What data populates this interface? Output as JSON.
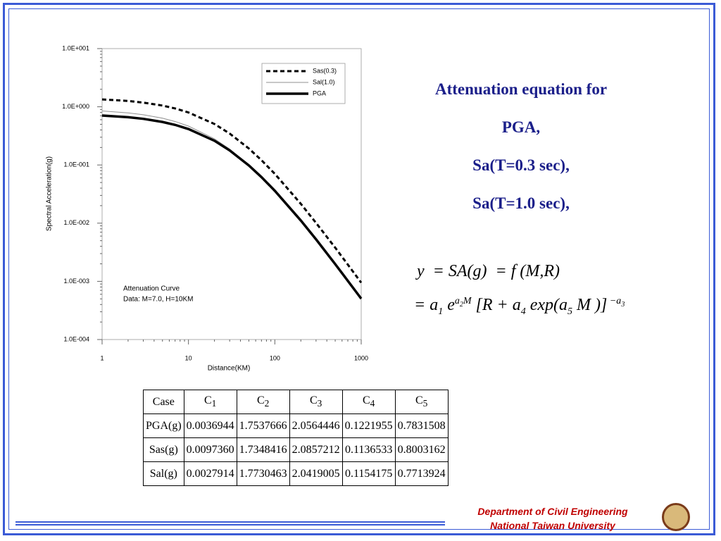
{
  "chart_data": {
    "type": "line",
    "log_x": true,
    "log_y": true,
    "ylabel": "Spectral Acceleration(g)",
    "xlabel": "Distance(KM)",
    "annotations": [
      "Attenuation Curve",
      "Data: M=7.0, H=10KM"
    ],
    "legend": "upper right",
    "xlim": [
      1,
      1000
    ],
    "xticks": [
      1,
      10,
      100,
      1000
    ],
    "ylim": [
      0.0001,
      10
    ],
    "yticks": [
      {
        "value": 10,
        "label": "1.0E+001"
      },
      {
        "value": 1,
        "label": "1.0E+000"
      },
      {
        "value": 0.1,
        "label": "1.0E-001"
      },
      {
        "value": 0.01,
        "label": "1.0E-002"
      },
      {
        "value": 0.001,
        "label": "1.0E-003"
      },
      {
        "value": 0.0001,
        "label": "1.0E-004"
      }
    ],
    "x": [
      1,
      2,
      3,
      5,
      7,
      10,
      20,
      30,
      50,
      70,
      100,
      200,
      300,
      500,
      700,
      1000
    ],
    "series": [
      {
        "name": "Sas(0.3)",
        "color": "#000000",
        "style": "dashed",
        "linewidth": 3,
        "values": [
          1.34,
          1.26,
          1.18,
          1.05,
          0.937,
          0.799,
          0.506,
          0.347,
          0.192,
          0.121,
          0.0704,
          0.0215,
          0.0101,
          0.00379,
          0.00194,
          0.000949
        ]
      },
      {
        "name": "Sal(1.0)",
        "color": "#909090",
        "style": "solid",
        "linewidth": 1,
        "values": [
          0.848,
          0.786,
          0.731,
          0.637,
          0.559,
          0.466,
          0.282,
          0.188,
          0.1,
          0.0619,
          0.0355,
          0.0108,
          0.00506,
          0.00191,
          0.000986,
          0.000486
        ]
      },
      {
        "name": "PGA",
        "color": "#000000",
        "style": "solid",
        "linewidth": 3.5,
        "values": [
          0.707,
          0.663,
          0.621,
          0.549,
          0.489,
          0.415,
          0.261,
          0.178,
          0.0981,
          0.0619,
          0.036,
          0.0111,
          0.00527,
          0.00198,
          0.00102,
          0.000505
        ]
      }
    ]
  },
  "heading": [
    "Attenuation equation for",
    "PGA,",
    "Sa(T=0.3 sec),",
    "Sa(T=1.0 sec),"
  ],
  "equation": {
    "line1": "y  = SA(g)  = f (M,R)",
    "line2": [
      "= a",
      "1",
      " e",
      "a",
      "2",
      "M",
      " [R + a",
      "4",
      " exp(a",
      "5",
      " M )]",
      " −a",
      "3"
    ]
  },
  "table": {
    "header": [
      "Case",
      [
        "C",
        "1"
      ],
      [
        "C",
        "2"
      ],
      [
        "C",
        "3"
      ],
      [
        "C",
        "4"
      ],
      [
        "C",
        "5"
      ]
    ],
    "rows": [
      [
        "PGA(g)",
        "0.0036944",
        "1.7537666",
        "2.0564446",
        "0.1221955",
        "0.7831508"
      ],
      [
        "Sas(g)",
        "0.0097360",
        "1.7348416",
        "2.0857212",
        "0.1136533",
        "0.8003162"
      ],
      [
        "Sal(g)",
        "0.0027914",
        "1.7730463",
        "2.0419005",
        "0.1154175",
        "0.7713924"
      ]
    ]
  },
  "footer": [
    "Department of Civil Engineering",
    "National Taiwan University"
  ]
}
